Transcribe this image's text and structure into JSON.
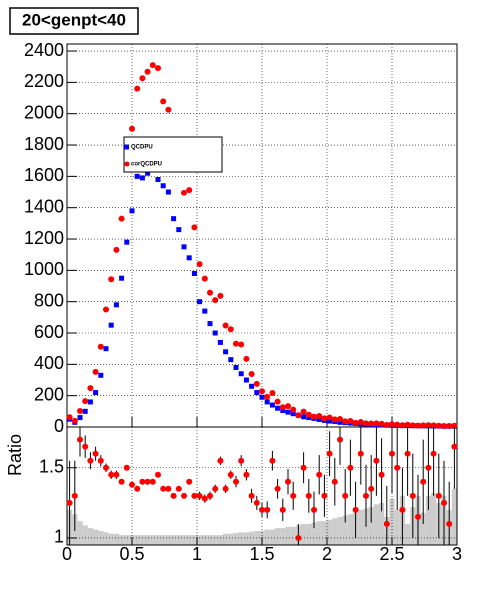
{
  "chart_data": {
    "type": "ratio-plot",
    "title": "20<genpt<40",
    "x": [
      0.02,
      0.06,
      0.1,
      0.14,
      0.18,
      0.22,
      0.26,
      0.3,
      0.34,
      0.38,
      0.42,
      0.46,
      0.5,
      0.54,
      0.58,
      0.62,
      0.66,
      0.7,
      0.74,
      0.78,
      0.82,
      0.86,
      0.9,
      0.94,
      0.98,
      1.02,
      1.06,
      1.1,
      1.14,
      1.18,
      1.22,
      1.26,
      1.3,
      1.34,
      1.38,
      1.42,
      1.46,
      1.5,
      1.54,
      1.58,
      1.62,
      1.66,
      1.7,
      1.74,
      1.78,
      1.82,
      1.86,
      1.9,
      1.94,
      1.98,
      2.02,
      2.06,
      2.1,
      2.14,
      2.18,
      2.22,
      2.26,
      2.3,
      2.34,
      2.38,
      2.42,
      2.46,
      2.5,
      2.54,
      2.58,
      2.62,
      2.66,
      2.7,
      2.74,
      2.78,
      2.82,
      2.86,
      2.9,
      2.94,
      2.98
    ],
    "series": [
      {
        "name": "QCDPU",
        "color": "#0000ff",
        "values": [
          50,
          30,
          60,
          100,
          160,
          220,
          330,
          500,
          650,
          780,
          950,
          1180,
          1380,
          1600,
          1590,
          1620,
          1650,
          1580,
          1540,
          1500,
          1330,
          1260,
          1150,
          1080,
          980,
          800,
          740,
          660,
          600,
          540,
          480,
          430,
          380,
          340,
          300,
          260,
          220,
          190,
          160,
          140,
          120,
          105,
          95,
          85,
          75,
          65,
          60,
          55,
          48,
          42,
          38,
          35,
          30,
          28,
          25,
          22,
          20,
          18,
          16,
          15,
          14,
          12,
          11,
          10,
          9,
          9,
          8,
          8,
          7,
          7,
          6,
          6,
          5,
          5,
          5
        ]
      },
      {
        "name": "corQCDPU",
        "color": "#ff0000",
        "values": [
          62,
          39,
          102,
          165,
          248,
          352,
          512,
          750,
          943,
          1131,
          1330,
          1770,
          1904,
          2160,
          2226,
          2268,
          2310,
          2291,
          2079,
          2025,
          1729,
          1701,
          1495,
          1512,
          1274,
          1040,
          947,
          858,
          810,
          837,
          648,
          624,
          532,
          527,
          435,
          338,
          275,
          228,
          192,
          217,
          162,
          126,
          133,
          111,
          75,
          98,
          78,
          66,
          70,
          55,
          61,
          49,
          51,
          36,
          38,
          26,
          32,
          23,
          22,
          23,
          20,
          13,
          18,
          15,
          11,
          14,
          10,
          9,
          10,
          11,
          10,
          8,
          6,
          6,
          8
        ]
      }
    ],
    "xlim": [
      0,
      3
    ],
    "xticks": [
      0,
      0.5,
      1,
      1.5,
      2,
      2.5,
      3
    ],
    "ylim": [
      0,
      2445
    ],
    "yticks": [
      0,
      200,
      400,
      600,
      800,
      1000,
      1200,
      1400,
      1600,
      1800,
      2000,
      2200,
      2400
    ],
    "ratio": {
      "ylabel": "Ratio",
      "ylim": [
        0.95,
        1.79
      ],
      "yticks": [
        1,
        1.5
      ],
      "color": "#ff0000",
      "band_color": "#cccccc",
      "values": [
        1.25,
        1.3,
        1.7,
        1.65,
        1.55,
        1.6,
        1.55,
        1.5,
        1.45,
        1.45,
        1.4,
        1.5,
        1.38,
        1.35,
        1.4,
        1.4,
        1.4,
        1.45,
        1.35,
        1.35,
        1.3,
        1.35,
        1.3,
        1.4,
        1.3,
        1.3,
        1.28,
        1.3,
        1.35,
        1.55,
        1.35,
        1.45,
        1.4,
        1.55,
        1.45,
        1.3,
        1.25,
        1.2,
        1.2,
        1.55,
        1.35,
        1.2,
        1.4,
        1.3,
        1.0,
        1.5,
        1.3,
        1.2,
        1.45,
        1.3,
        1.6,
        1.4,
        1.7,
        1.3,
        1.5,
        1.2,
        1.6,
        1.3,
        1.35,
        1.55,
        1.45,
        1.1,
        1.6,
        1.5,
        1.2,
        1.6,
        1.3,
        1.15,
        1.4,
        1.5,
        1.6,
        1.3,
        1.25,
        1.1,
        1.65
      ],
      "errors": [
        0.3,
        0.25,
        0.12,
        0.08,
        0.06,
        0.05,
        0.04,
        0.03,
        0.03,
        0.03,
        0.02,
        0.02,
        0.02,
        0.02,
        0.02,
        0.02,
        0.02,
        0.02,
        0.02,
        0.02,
        0.02,
        0.02,
        0.02,
        0.02,
        0.02,
        0.03,
        0.03,
        0.03,
        0.03,
        0.03,
        0.03,
        0.03,
        0.04,
        0.04,
        0.04,
        0.05,
        0.05,
        0.05,
        0.06,
        0.07,
        0.07,
        0.08,
        0.09,
        0.1,
        0.1,
        0.11,
        0.12,
        0.13,
        0.14,
        0.15,
        0.16,
        0.17,
        0.18,
        0.19,
        0.2,
        0.2,
        0.22,
        0.22,
        0.24,
        0.25,
        0.26,
        0.27,
        0.28,
        0.3,
        0.3,
        0.3,
        0.3,
        0.3,
        0.3,
        0.3,
        0.3,
        0.3,
        0.3,
        0.3,
        0.3
      ],
      "band": [
        1.2,
        1.17,
        1.12,
        1.09,
        1.07,
        1.06,
        1.05,
        1.04,
        1.03,
        1.03,
        1.02,
        1.02,
        1.02,
        1.02,
        1.02,
        1.02,
        1.02,
        1.02,
        1.02,
        1.02,
        1.02,
        1.02,
        1.02,
        1.02,
        1.02,
        1.02,
        1.02,
        1.02,
        1.02,
        1.02,
        1.03,
        1.03,
        1.035,
        1.04,
        1.04,
        1.045,
        1.05,
        1.05,
        1.06,
        1.06,
        1.07,
        1.07,
        1.08,
        1.08,
        1.09,
        1.1,
        1.1,
        1.11,
        1.12,
        1.12,
        1.13,
        1.14,
        1.15,
        1.16,
        1.17,
        1.18,
        1.2,
        1.21,
        1.22,
        1.24,
        1.25,
        1.15,
        1.28,
        1.2,
        1.3,
        1.1,
        1.22,
        1.3,
        1.18,
        1.3,
        1.32,
        1.25,
        1.3,
        1.2,
        1.35
      ]
    },
    "grid": true
  }
}
